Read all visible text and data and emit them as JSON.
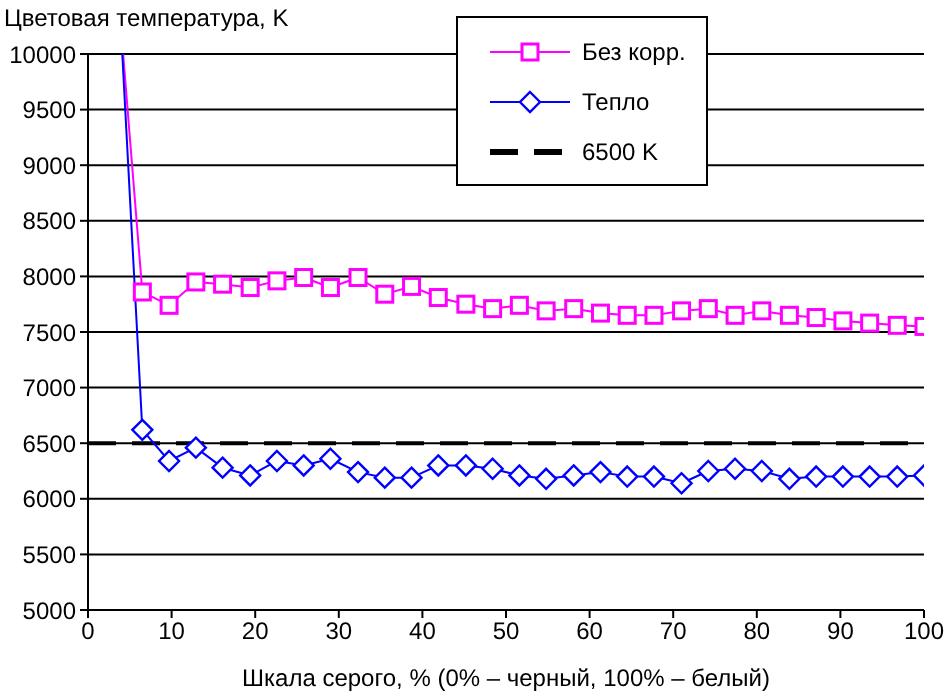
{
  "chart_data": {
    "type": "line",
    "ylabel": "Цветовая температура, K",
    "xlabel": "Шкала серого, % (0% – черный, 100% – белый)",
    "xlim": [
      0,
      100
    ],
    "xticks": [
      0,
      10,
      20,
      30,
      40,
      50,
      60,
      70,
      80,
      90,
      100
    ],
    "ylim": [
      5000,
      10000
    ],
    "yticks": [
      5000,
      5500,
      6000,
      6500,
      7000,
      7500,
      8000,
      8500,
      9000,
      9500,
      10000
    ],
    "grid": "y",
    "legend": "top right",
    "ref_lines": [
      {
        "axis": "y",
        "value": 6500,
        "label": "6500 K",
        "color": "#000000",
        "line_style": "dashed"
      }
    ],
    "series": [
      {
        "name": "Без корр.",
        "color": "#ff00ff",
        "marker": "square",
        "x": [
          4.2,
          6.5,
          9.7,
          12.9,
          16.1,
          19.4,
          22.6,
          25.8,
          29,
          32.3,
          35.5,
          38.7,
          41.9,
          45.2,
          48.4,
          51.6,
          54.8,
          58.1,
          61.3,
          64.5,
          67.7,
          71,
          74.2,
          77.4,
          80.6,
          83.9,
          87.1,
          90.3,
          93.5,
          96.8,
          100
        ],
        "values": [
          10000,
          7860,
          7740,
          7950,
          7930,
          7900,
          7960,
          7990,
          7900,
          7990,
          7840,
          7910,
          7810,
          7750,
          7710,
          7740,
          7690,
          7710,
          7670,
          7650,
          7650,
          7690,
          7710,
          7650,
          7690,
          7650,
          7630,
          7600,
          7580,
          7560,
          7550
        ]
      },
      {
        "name": "Тепло",
        "color": "#0000ff",
        "marker": "diamond",
        "x": [
          4.1,
          6.5,
          9.7,
          12.9,
          16.1,
          19.4,
          22.6,
          25.8,
          29,
          32.3,
          35.5,
          38.7,
          41.9,
          45.2,
          48.4,
          51.6,
          54.8,
          58.1,
          61.3,
          64.5,
          67.7,
          71,
          74.2,
          77.4,
          80.6,
          83.9,
          87.1,
          90.3,
          93.5,
          96.8,
          100
        ],
        "values": [
          10000,
          6620,
          6340,
          6460,
          6280,
          6210,
          6340,
          6300,
          6360,
          6240,
          6190,
          6190,
          6300,
          6300,
          6270,
          6210,
          6180,
          6210,
          6240,
          6200,
          6200,
          6140,
          6250,
          6270,
          6250,
          6180,
          6200,
          6200,
          6200,
          6200,
          6210
        ]
      }
    ]
  }
}
